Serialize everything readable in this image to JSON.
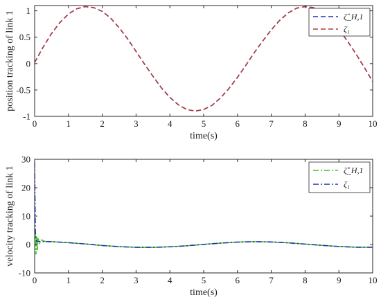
{
  "chart_data": [
    {
      "type": "line",
      "xlabel": "time(s)",
      "ylabel": "position tracking of link 1",
      "xlim": [
        0,
        10
      ],
      "ylim": [
        -1,
        1.1
      ],
      "xticks": [
        "0",
        "1",
        "2",
        "3",
        "4",
        "5",
        "6",
        "7",
        "8",
        "9",
        "10"
      ],
      "yticks": [
        "-1",
        "-0.5",
        "0",
        "0.5",
        "1"
      ],
      "ytick_values": [
        -1,
        -0.5,
        0,
        0.5,
        1
      ],
      "grid": false,
      "legend_position": "top-right",
      "x": [
        0,
        0.25,
        0.5,
        0.75,
        1,
        1.25,
        1.5,
        1.75,
        2,
        2.25,
        2.5,
        2.75,
        3,
        3.25,
        3.5,
        3.75,
        4,
        4.25,
        4.5,
        4.75,
        5,
        5.25,
        5.5,
        5.75,
        6,
        6.25,
        6.5,
        6.75,
        7,
        7.25,
        7.5,
        7.75,
        8,
        8.25,
        8.5,
        8.75,
        9,
        9.25,
        9.5,
        9.75,
        10
      ],
      "series": [
        {
          "name": "ζ̂_H,1",
          "color": "#1f2fbf",
          "style": "dashed",
          "values": [
            0.02,
            0.31,
            0.57,
            0.78,
            0.94,
            1.04,
            1.08,
            1.06,
            0.99,
            0.86,
            0.68,
            0.47,
            0.23,
            -0.01,
            -0.24,
            -0.46,
            -0.64,
            -0.78,
            -0.87,
            -0.9,
            -0.87,
            -0.79,
            -0.65,
            -0.47,
            -0.26,
            -0.03,
            0.21,
            0.43,
            0.64,
            0.82,
            0.96,
            1.05,
            1.08,
            1.06,
            0.97,
            0.83,
            0.65,
            0.43,
            0.19,
            -0.07,
            -0.34
          ]
        },
        {
          "name": "ζ₁",
          "color": "#b23a3a",
          "style": "dashed",
          "values": [
            0.02,
            0.31,
            0.57,
            0.78,
            0.94,
            1.04,
            1.08,
            1.06,
            0.99,
            0.86,
            0.68,
            0.47,
            0.23,
            -0.01,
            -0.24,
            -0.46,
            -0.64,
            -0.78,
            -0.87,
            -0.9,
            -0.87,
            -0.79,
            -0.65,
            -0.47,
            -0.26,
            -0.03,
            0.21,
            0.43,
            0.64,
            0.82,
            0.96,
            1.05,
            1.08,
            1.06,
            0.97,
            0.83,
            0.65,
            0.43,
            0.19,
            -0.07,
            -0.34
          ]
        }
      ]
    },
    {
      "type": "line",
      "xlabel": "time(s)",
      "ylabel": "velocity tracking of link 1",
      "xlim": [
        0,
        10
      ],
      "ylim": [
        -10,
        30
      ],
      "xticks": [
        "0",
        "1",
        "2",
        "3",
        "4",
        "5",
        "6",
        "7",
        "8",
        "9",
        "10"
      ],
      "yticks": [
        "-10",
        "0",
        "10",
        "20",
        "30"
      ],
      "ytick_values": [
        -10,
        0,
        10,
        20,
        30
      ],
      "grid": false,
      "legend_position": "top-right",
      "x": [
        0,
        0.02,
        0.04,
        0.06,
        0.08,
        0.1,
        0.15,
        0.2,
        0.3,
        0.5,
        1,
        1.5,
        2,
        2.5,
        3,
        3.5,
        4,
        4.5,
        5,
        5.5,
        6,
        6.5,
        7,
        7.5,
        8,
        8.5,
        9,
        9.5,
        10
      ],
      "series": [
        {
          "name": "ζ̂̇_H,1",
          "color": "#44c21c",
          "style": "dashdot",
          "values": [
            0,
            4.5,
            -3.5,
            3,
            -2,
            2.2,
            0.4,
            1.6,
            1.1,
            1.0,
            0.65,
            0.2,
            -0.35,
            -0.75,
            -0.98,
            -1.0,
            -0.8,
            -0.45,
            0.05,
            0.5,
            0.85,
            1.0,
            0.9,
            0.6,
            0.15,
            -0.3,
            -0.7,
            -0.95,
            -0.95
          ]
        },
        {
          "name": "ζ₁",
          "color": "#2030b0",
          "style": "dashdot",
          "values": [
            29,
            5,
            1.5,
            1.2,
            1.1,
            1.05,
            1.04,
            1.03,
            1.02,
            1.0,
            0.65,
            0.2,
            -0.35,
            -0.75,
            -0.98,
            -1.0,
            -0.8,
            -0.45,
            0.05,
            0.5,
            0.85,
            1.0,
            0.9,
            0.6,
            0.15,
            -0.3,
            -0.7,
            -0.95,
            -0.95
          ]
        }
      ]
    }
  ]
}
